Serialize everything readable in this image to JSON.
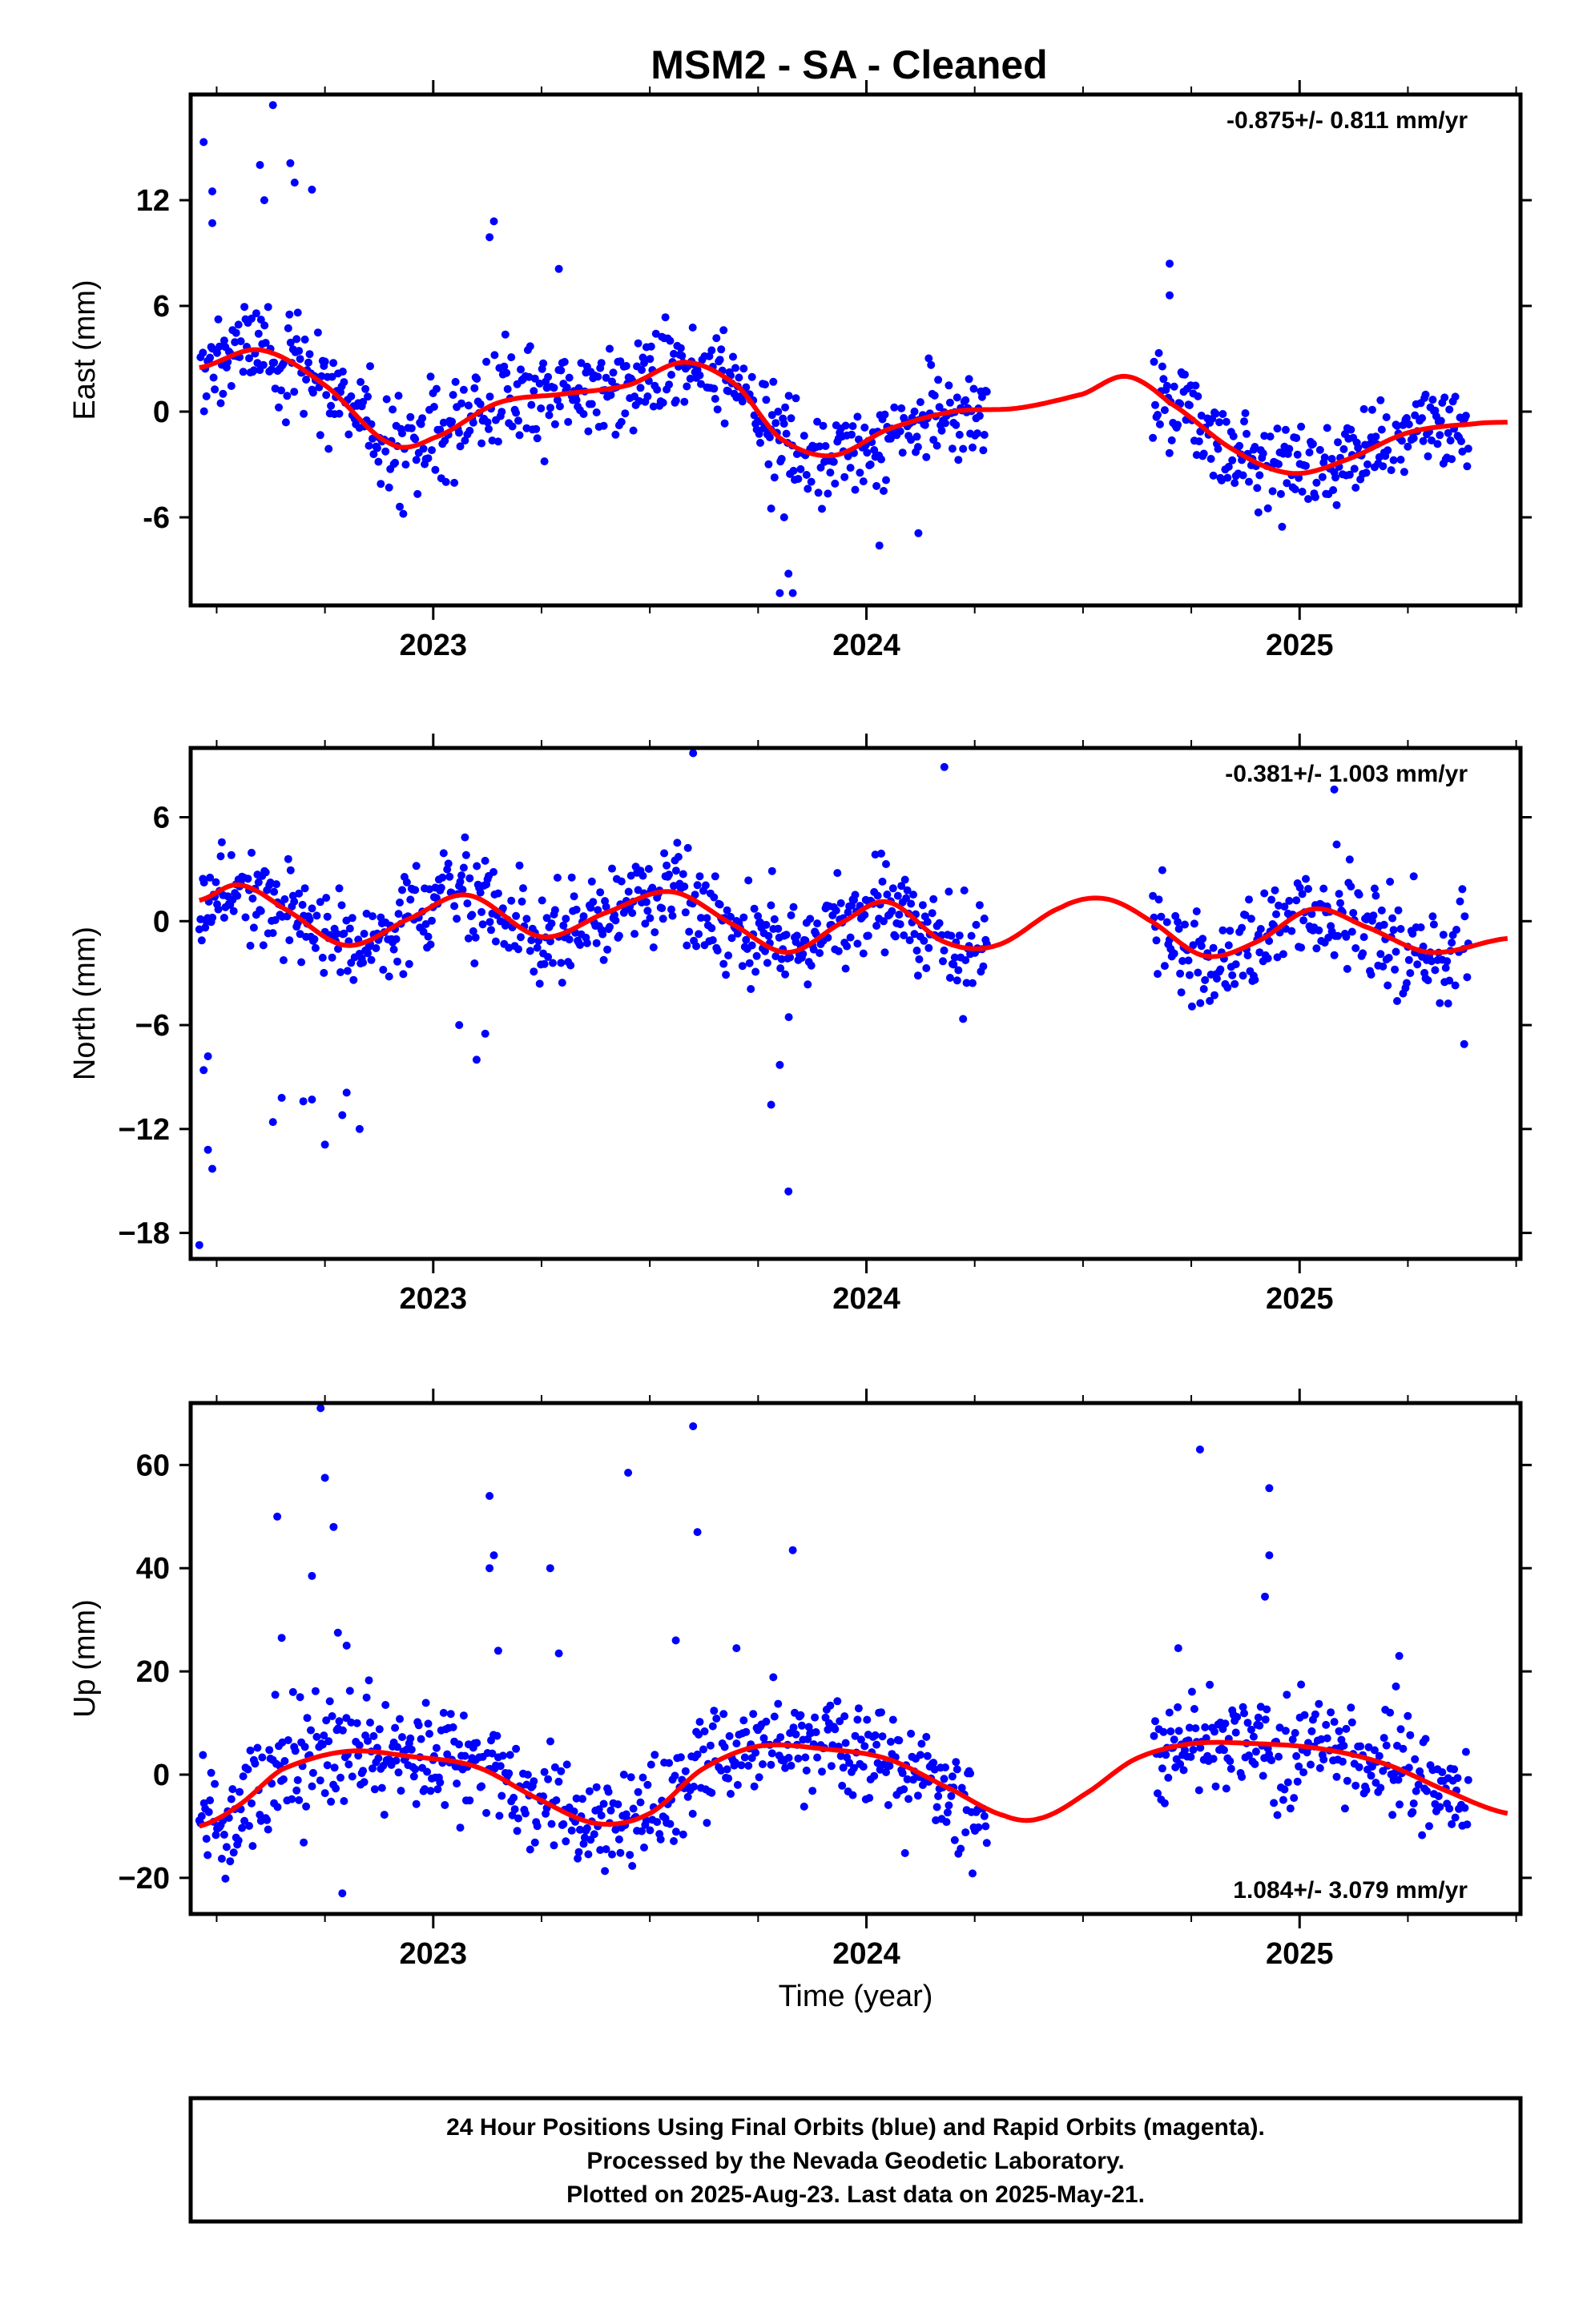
{
  "title": "MSM2  - SA - Cleaned",
  "xlabel": "Time (year)",
  "footer": {
    "line1": "24 Hour Positions Using Final Orbits (blue) and Rapid Orbits (magenta).",
    "line2": "Processed by the Nevada Geodetic Laboratory.",
    "line3": "Plotted on 2025-Aug-23. Last data on 2025-May-21."
  },
  "colors": {
    "points": "#0000ff",
    "fit": "#ff0000",
    "frame": "#000000",
    "background": "#ffffff"
  },
  "chart_data": [
    {
      "type": "scatter",
      "panel": "east",
      "ylabel": "East (mm)",
      "rate_text": "-0.875+/- 0.811 mm/yr",
      "rate_position": "top-right",
      "xlim": [
        2022.44,
        2025.51
      ],
      "ylim": [
        -11,
        18
      ],
      "x_ticks": [
        2023,
        2024,
        2025
      ],
      "x_tick_labels": [
        "2023",
        "2024",
        "2025"
      ],
      "y_ticks": [
        -6,
        0,
        6,
        12
      ],
      "y_tick_labels": [
        "-6",
        "0",
        "6",
        "12"
      ],
      "grid": false,
      "gaps": [
        [
          2024.28,
          2024.66
        ]
      ],
      "trend": {
        "rate": -0.875,
        "value_2023_5": 0.0
      },
      "seasonal": {
        "annual_cos": 0.0,
        "annual_sin": 0.0,
        "semi_cos": 0.0,
        "semi_sin": 0.0
      },
      "fit_anchors": {
        "x": [
          2022.46,
          2022.6,
          2022.75,
          2022.9,
          2023.0,
          2023.15,
          2023.3,
          2023.45,
          2023.58,
          2023.7,
          2023.8,
          2023.92,
          2024.05,
          2024.2,
          2024.35,
          2024.5,
          2024.6,
          2024.7,
          2024.85,
          2024.98,
          2025.1,
          2025.25,
          2025.4,
          2025.48
        ],
        "y": [
          2.5,
          3.5,
          1.5,
          -1.8,
          -1.5,
          0.5,
          1.0,
          1.5,
          2.8,
          1.5,
          -1.5,
          -2.5,
          -1.0,
          0.0,
          0.2,
          1.0,
          2.0,
          0.5,
          -2.2,
          -3.5,
          -2.8,
          -1.2,
          -0.7,
          -0.6
        ]
      },
      "noise_sd": 1.3,
      "outliers": [
        {
          "x": 2022.47,
          "y": 15.3
        },
        {
          "x": 2022.49,
          "y": 12.5
        },
        {
          "x": 2022.49,
          "y": 10.7
        },
        {
          "x": 2022.6,
          "y": 14.0
        },
        {
          "x": 2022.61,
          "y": 12.0
        },
        {
          "x": 2022.63,
          "y": 17.4
        },
        {
          "x": 2022.67,
          "y": 14.1
        },
        {
          "x": 2022.68,
          "y": 13.0
        },
        {
          "x": 2022.72,
          "y": 12.6
        },
        {
          "x": 2023.14,
          "y": 10.8
        },
        {
          "x": 2023.13,
          "y": 9.9
        },
        {
          "x": 2023.29,
          "y": 8.1
        },
        {
          "x": 2023.8,
          "y": -10.3
        },
        {
          "x": 2023.83,
          "y": -10.3
        },
        {
          "x": 2023.82,
          "y": -9.2
        },
        {
          "x": 2024.03,
          "y": -7.6
        },
        {
          "x": 2024.12,
          "y": -6.9
        },
        {
          "x": 2024.7,
          "y": 8.4
        },
        {
          "x": 2024.7,
          "y": 6.6
        },
        {
          "x": 2023.78,
          "y": -5.5
        },
        {
          "x": 2023.81,
          "y": -6.0
        }
      ]
    },
    {
      "type": "scatter",
      "panel": "north",
      "ylabel": "North (mm)",
      "rate_text": "-0.381+/- 1.003 mm/yr",
      "rate_position": "top-right",
      "xlim": [
        2022.44,
        2025.51
      ],
      "ylim": [
        -19.5,
        10
      ],
      "x_ticks": [
        2023,
        2024,
        2025
      ],
      "x_tick_labels": [
        "2023",
        "2024",
        "2025"
      ],
      "y_ticks": [
        -18,
        -12,
        -6,
        0,
        6
      ],
      "y_tick_labels": [
        "−18",
        "−12",
        "−6",
        "0",
        "6"
      ],
      "grid": false,
      "gaps": [
        [
          2024.28,
          2024.66
        ]
      ],
      "fit_anchors": {
        "x": [
          2022.46,
          2022.55,
          2022.65,
          2022.8,
          2022.95,
          2023.08,
          2023.25,
          2023.4,
          2023.55,
          2023.7,
          2023.82,
          2023.95,
          2024.05,
          2024.18,
          2024.3,
          2024.45,
          2024.55,
          2024.65,
          2024.78,
          2024.9,
          2025.03,
          2025.15,
          2025.3,
          2025.48
        ],
        "y": [
          1.2,
          2.1,
          0.8,
          -1.4,
          0.2,
          1.5,
          -0.9,
          0.5,
          1.7,
          -0.3,
          -1.8,
          0.0,
          1.1,
          -1.2,
          -1.4,
          0.8,
          1.3,
          0.1,
          -2.0,
          -1.2,
          0.7,
          -0.3,
          -1.8,
          -1.0
        ]
      },
      "noise_sd": 1.4,
      "outliers": [
        {
          "x": 2022.46,
          "y": -18.7
        },
        {
          "x": 2022.48,
          "y": -13.2
        },
        {
          "x": 2022.49,
          "y": -14.3
        },
        {
          "x": 2022.47,
          "y": -8.6
        },
        {
          "x": 2022.48,
          "y": -7.8
        },
        {
          "x": 2022.63,
          "y": -11.6
        },
        {
          "x": 2022.65,
          "y": -10.2
        },
        {
          "x": 2022.7,
          "y": -10.4
        },
        {
          "x": 2022.72,
          "y": -10.3
        },
        {
          "x": 2022.75,
          "y": -12.9
        },
        {
          "x": 2022.79,
          "y": -11.2
        },
        {
          "x": 2022.83,
          "y": -12.0
        },
        {
          "x": 2022.8,
          "y": -9.9
        },
        {
          "x": 2023.78,
          "y": -10.6
        },
        {
          "x": 2023.8,
          "y": -8.3
        },
        {
          "x": 2023.82,
          "y": -15.6
        },
        {
          "x": 2023.6,
          "y": 9.7
        },
        {
          "x": 2024.18,
          "y": 8.9
        },
        {
          "x": 2025.08,
          "y": 7.6
        },
        {
          "x": 2023.1,
          "y": -8.0
        },
        {
          "x": 2023.06,
          "y": -6.0
        },
        {
          "x": 2023.12,
          "y": -6.5
        },
        {
          "x": 2025.38,
          "y": -7.1
        }
      ]
    },
    {
      "type": "scatter",
      "panel": "up",
      "ylabel": "Up (mm)",
      "rate_text": "1.084+/- 3.079 mm/yr",
      "rate_position": "bottom-right",
      "xlim": [
        2022.44,
        2025.51
      ],
      "ylim": [
        -27,
        72
      ],
      "x_ticks": [
        2023,
        2024,
        2025
      ],
      "x_tick_labels": [
        "2023",
        "2024",
        "2025"
      ],
      "y_ticks": [
        -20,
        0,
        20,
        40,
        60
      ],
      "y_tick_labels": [
        "−20",
        "0",
        "20",
        "40",
        "60"
      ],
      "grid": false,
      "gaps": [
        [
          2024.28,
          2024.66
        ]
      ],
      "fit_anchors": {
        "x": [
          2022.46,
          2022.55,
          2022.65,
          2022.8,
          2022.95,
          2023.1,
          2023.25,
          2023.38,
          2023.5,
          2023.62,
          2023.75,
          2023.9,
          2024.05,
          2024.2,
          2024.32,
          2024.4,
          2024.5,
          2024.62,
          2024.75,
          2024.9,
          2025.05,
          2025.2,
          2025.35,
          2025.48
        ],
        "y": [
          -10.0,
          -6.0,
          1.0,
          4.5,
          3.5,
          1.5,
          -5.0,
          -9.5,
          -7.5,
          1.0,
          5.5,
          5.0,
          3.0,
          -3.0,
          -8.0,
          -8.5,
          -4.0,
          3.0,
          6.0,
          6.0,
          5.0,
          2.0,
          -3.5,
          -7.5
        ]
      },
      "noise_sd": 5.2,
      "outliers": [
        {
          "x": 2022.74,
          "y": 71.0
        },
        {
          "x": 2022.75,
          "y": 57.5
        },
        {
          "x": 2022.77,
          "y": 48.0
        },
        {
          "x": 2022.64,
          "y": 50.0
        },
        {
          "x": 2022.72,
          "y": 38.5
        },
        {
          "x": 2022.65,
          "y": 26.5
        },
        {
          "x": 2022.78,
          "y": 27.5
        },
        {
          "x": 2022.8,
          "y": 25.0
        },
        {
          "x": 2023.13,
          "y": 54.0
        },
        {
          "x": 2023.14,
          "y": 42.5
        },
        {
          "x": 2023.13,
          "y": 40.0
        },
        {
          "x": 2023.15,
          "y": 24.0
        },
        {
          "x": 2023.27,
          "y": 40.0
        },
        {
          "x": 2023.29,
          "y": 23.5
        },
        {
          "x": 2023.45,
          "y": 58.5
        },
        {
          "x": 2023.6,
          "y": 67.5
        },
        {
          "x": 2023.61,
          "y": 47.0
        },
        {
          "x": 2023.56,
          "y": 26.0
        },
        {
          "x": 2023.83,
          "y": 43.5
        },
        {
          "x": 2023.7,
          "y": 24.5
        },
        {
          "x": 2024.77,
          "y": 63.0
        },
        {
          "x": 2024.93,
          "y": 55.5
        },
        {
          "x": 2024.93,
          "y": 42.5
        },
        {
          "x": 2024.92,
          "y": 34.5
        },
        {
          "x": 2024.72,
          "y": 24.5
        },
        {
          "x": 2025.23,
          "y": 23.0
        },
        {
          "x": 2022.79,
          "y": -23.0
        }
      ]
    }
  ]
}
